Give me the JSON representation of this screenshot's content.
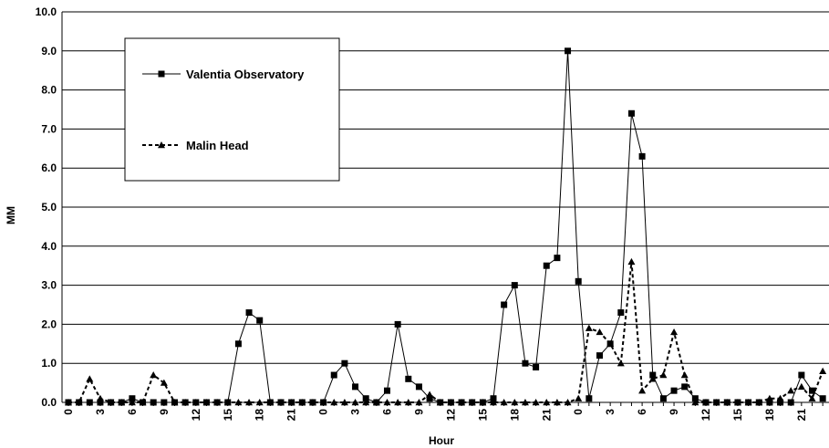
{
  "chart_data": {
    "type": "line",
    "title": "",
    "xlabel": "Hour",
    "ylabel": "MM",
    "ylim": [
      0,
      10
    ],
    "yticks": [
      "0.0",
      "1.0",
      "2.0",
      "3.0",
      "4.0",
      "5.0",
      "6.0",
      "7.0",
      "8.0",
      "9.0",
      "10.0"
    ],
    "x_tick_labels": [
      "0",
      "3",
      "6",
      "9",
      "12",
      "15",
      "18",
      "21",
      "0",
      "3",
      "6",
      "9",
      "12",
      "15",
      "18",
      "21",
      "0",
      "3",
      "6",
      "9",
      "12",
      "15",
      "18",
      "21"
    ],
    "x_tick_step": 3,
    "x_count": 72,
    "grid": "horizontal",
    "legend_position": "top-left",
    "series": [
      {
        "name": "Valentia Observatory",
        "style": "solid",
        "marker": "square",
        "color": "#000000",
        "values": [
          0,
          0,
          0,
          0,
          0,
          0,
          0.1,
          0,
          0,
          0,
          0,
          0,
          0,
          0,
          0,
          0,
          1.5,
          2.3,
          2.1,
          0,
          0,
          0,
          0,
          0,
          0,
          0.7,
          1.0,
          0.4,
          0.1,
          0,
          0.3,
          2.0,
          0.6,
          0.4,
          0.1,
          0,
          0,
          0,
          0,
          0,
          0.1,
          2.5,
          3.0,
          1.0,
          0.9,
          3.5,
          3.7,
          9.0,
          3.1,
          0.1,
          1.2,
          1.5,
          2.3,
          7.4,
          6.3,
          0.7,
          0.1,
          0.3,
          0.4,
          0.1,
          0,
          0,
          0,
          0,
          0,
          0,
          0,
          0,
          0,
          0.7,
          0.3,
          0.1
        ]
      },
      {
        "name": "Malin Head",
        "style": "dashed",
        "marker": "triangle",
        "color": "#000000",
        "values": [
          0,
          0,
          0.6,
          0.1,
          0,
          0,
          0,
          0,
          0.7,
          0.5,
          0,
          0,
          0,
          0,
          0,
          0,
          0,
          0,
          0,
          0,
          0,
          0,
          0,
          0,
          0,
          0,
          0,
          0,
          0,
          0,
          0,
          0,
          0,
          0,
          0.2,
          0,
          0,
          0,
          0,
          0,
          0,
          0,
          0,
          0,
          0,
          0,
          0,
          0,
          0.1,
          1.9,
          1.8,
          1.5,
          1.0,
          3.6,
          0.3,
          0.6,
          0.7,
          1.8,
          0.7,
          0,
          0,
          0,
          0,
          0,
          0,
          0,
          0.1,
          0.1,
          0.3,
          0.4,
          0.1,
          0.8
        ]
      }
    ]
  }
}
